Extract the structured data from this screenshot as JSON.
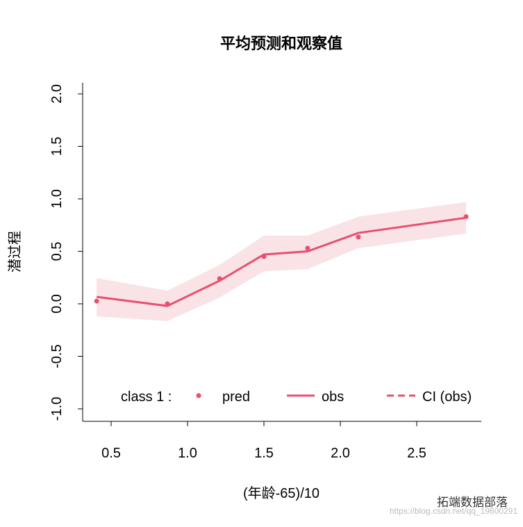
{
  "chart_data": {
    "type": "line",
    "title": "平均预测和观察值",
    "xlabel": "(年龄-65)/10",
    "ylabel": "潜过程",
    "xlim": [
      0.33,
      2.93
    ],
    "ylim": [
      -1.1,
      2.1
    ],
    "xticks": [
      "0.5",
      "1.0",
      "1.5",
      "2.0",
      "2.5"
    ],
    "yticks": [
      "-1.0",
      "-0.5",
      "0.0",
      "0.5",
      "1.0",
      "1.5",
      "2.0"
    ],
    "color": "#E8506E",
    "band_color": "#F9E3E7",
    "x": [
      0.405,
      0.868,
      1.21,
      1.5,
      1.786,
      2.118,
      2.823
    ],
    "pred": [
      0.026,
      0.0,
      0.24,
      0.45,
      0.53,
      0.636,
      0.83
    ],
    "obs": [
      0.066,
      -0.02,
      0.22,
      0.47,
      0.5,
      0.675,
      0.82
    ],
    "ci_upper": [
      0.245,
      0.126,
      0.37,
      0.65,
      0.65,
      0.83,
      0.97
    ],
    "ci_lower": [
      -0.12,
      -0.165,
      0.06,
      0.31,
      0.33,
      0.53,
      0.67
    ],
    "legend": {
      "position": "bottom",
      "prefix": "class 1 :",
      "entries": [
        "pred",
        "obs",
        "CI (obs)"
      ]
    },
    "grid": false
  },
  "watermark": {
    "text": "拓端数据部落",
    "url": "https://blog.csdn.net/qq_19600291"
  }
}
